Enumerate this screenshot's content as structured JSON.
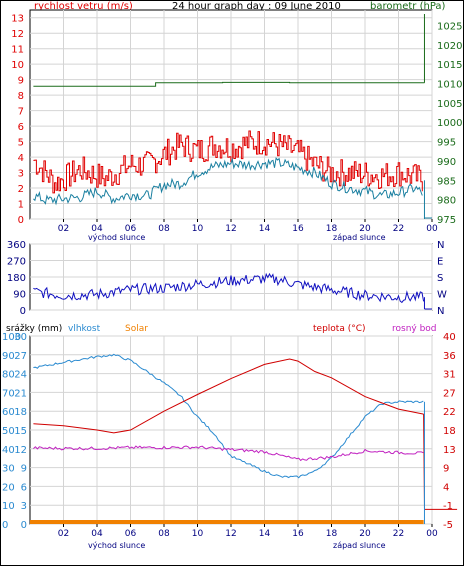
{
  "chart_data": [
    {
      "type": "line",
      "title": "24 hour graph day : 09 June 2010",
      "left_axis_label": "rychlost vetru (m/s)",
      "right_axis_label": "barometr (hPa)",
      "left_ticks": [
        "0",
        "1",
        "2",
        "3",
        "4",
        "5",
        "6",
        "7",
        "8",
        "9",
        "10",
        "11",
        "12",
        "13"
      ],
      "right_ticks": [
        "975",
        "980",
        "985",
        "990",
        "995",
        "1000",
        "1005",
        "1010",
        "1015",
        "1020",
        "1025"
      ],
      "x_ticks": [
        "02",
        "04",
        "06",
        "08",
        "10",
        "12",
        "14",
        "16",
        "18",
        "20",
        "22",
        "00"
      ],
      "sunrise_label": "východ slunce",
      "sunset_label": "západ slunce",
      "ylim_left": [
        0,
        13.5
      ],
      "ylim_right": [
        975,
        1029
      ],
      "grid": true,
      "colors": {
        "gust": "#e00000",
        "wind": "#1a7fa0",
        "pressure": "#1a6b1a"
      },
      "series": [
        {
          "key": "gust",
          "x": [
            0.2,
            1.5,
            3,
            4.5,
            6,
            7,
            8,
            9,
            10,
            11,
            12,
            13,
            14,
            15,
            16,
            17,
            18,
            19,
            20,
            21,
            22,
            23,
            23.5
          ],
          "values": [
            3.8,
            2.3,
            3.2,
            2.6,
            3.5,
            3.5,
            4.2,
            4.8,
            4.4,
            4.8,
            4.6,
            4.9,
            5.0,
            4.7,
            4.3,
            3.5,
            3.0,
            3.0,
            2.9,
            2.8,
            3.0,
            2.7,
            2.5
          ]
        },
        {
          "key": "wind",
          "x": [
            0.2,
            1,
            2,
            3,
            4,
            5,
            6,
            7,
            8,
            9,
            10,
            11,
            12,
            13,
            14,
            15,
            16,
            17,
            18,
            19,
            20,
            21,
            22,
            23,
            23.5
          ],
          "values": [
            1.5,
            1.2,
            1.3,
            1.4,
            1.8,
            1.3,
            1.6,
            1.5,
            2.2,
            2.3,
            3.0,
            3.4,
            3.6,
            3.5,
            3.6,
            3.6,
            3.3,
            3.0,
            2.3,
            2.0,
            1.8,
            1.5,
            1.7,
            2.0,
            1.6
          ]
        },
        {
          "key": "pressure",
          "x": [
            0.2,
            7,
            7.5,
            11,
            11.5,
            15,
            15.5,
            19,
            19.5,
            23.55
          ],
          "values": [
            1009.3,
            1009.3,
            1010.2,
            1010.2,
            1010.3,
            1010.3,
            1010.2,
            1010.2,
            1010.2,
            1010.2
          ]
        }
      ]
    },
    {
      "type": "line",
      "left_ticks": [
        "0",
        "90",
        "180",
        "270",
        "360"
      ],
      "right_ticks": [
        "N",
        "W",
        "S",
        "E",
        "N"
      ],
      "x_ticks": [
        "02",
        "04",
        "06",
        "08",
        "10",
        "12",
        "14",
        "16",
        "18",
        "20",
        "22",
        "00"
      ],
      "ylim": [
        0,
        360
      ],
      "grid": true,
      "colors": {
        "direction": "#1010c0"
      },
      "series": [
        {
          "key": "direction",
          "x": [
            0.2,
            2,
            4,
            6,
            8,
            10,
            12,
            14,
            15,
            16,
            18,
            20,
            22,
            23.5
          ],
          "values": [
            100,
            80,
            85,
            110,
            120,
            140,
            160,
            170,
            165,
            140,
            110,
            80,
            70,
            70
          ]
        }
      ]
    },
    {
      "type": "line",
      "label_precip": "srážky (mm)",
      "label_humidity": "vlhkost",
      "label_solar": "Solar",
      "label_temp": "teplota (°C)",
      "label_dew": "rosný bod",
      "left_ticks_precip": [
        "0",
        "10",
        "20",
        "30",
        "40",
        "50",
        "60",
        "70",
        "80",
        "90",
        "100"
      ],
      "left_ticks_humidity": [
        "0",
        "3",
        "6",
        "9",
        "12",
        "15",
        "18",
        "21",
        "24",
        "27",
        "30"
      ],
      "right_ticks": [
        "-5",
        "-1",
        "4",
        "9",
        "13",
        "18",
        "22",
        "27",
        "31",
        "36",
        "40"
      ],
      "x_ticks": [
        "02",
        "04",
        "06",
        "08",
        "10",
        "12",
        "14",
        "16",
        "18",
        "20",
        "22",
        "00"
      ],
      "sunrise_label": "východ slunce",
      "sunset_label": "západ slunce",
      "ylim_left": [
        0,
        100
      ],
      "ylim_right": [
        -5,
        40
      ],
      "grid": true,
      "colors": {
        "humidity": "#2a8ad0",
        "temperature": "#d00000",
        "dew_point": "#c020c0",
        "solar": "#f08000"
      },
      "series": [
        {
          "key": "humidity",
          "x": [
            0.2,
            2,
            4,
            5,
            6,
            8,
            9,
            10,
            11,
            12,
            13,
            14,
            15,
            16,
            17,
            18,
            19,
            20,
            21,
            22,
            23.5
          ],
          "values": [
            83,
            86,
            89,
            90,
            87,
            75,
            68,
            57,
            48,
            36,
            32,
            28,
            25,
            25,
            28,
            35,
            46,
            57,
            64,
            65,
            65
          ]
        },
        {
          "key": "temperature",
          "x": [
            0.2,
            2,
            4,
            5,
            6,
            8,
            10,
            12,
            14,
            15.5,
            16,
            17,
            18,
            20,
            22,
            23.5,
            23.55,
            25.5
          ],
          "values": [
            19,
            18.5,
            17.5,
            16.8,
            17.5,
            22,
            26,
            29.8,
            33.2,
            34.5,
            34,
            31.5,
            30,
            25.5,
            22.5,
            21.3,
            -1.5,
            -1.5
          ]
        },
        {
          "key": "dew_point",
          "x": [
            0.2,
            2,
            4,
            6,
            8,
            10,
            12,
            14,
            16,
            18,
            20,
            22,
            23.5
          ],
          "values": [
            13.2,
            13.1,
            13.1,
            13.3,
            13.3,
            13.4,
            12.8,
            12.3,
            10.4,
            11.0,
            12.5,
            12.1,
            11.9
          ]
        },
        {
          "key": "solar",
          "x": [
            0.2,
            23.5
          ],
          "values": [
            0,
            0
          ]
        }
      ]
    }
  ]
}
